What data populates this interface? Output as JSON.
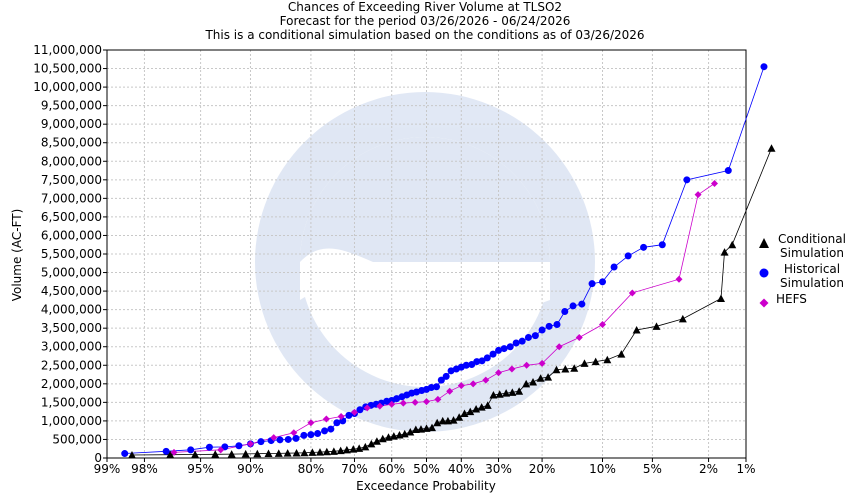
{
  "header": {
    "title": "Chances of Exceeding River Volume at TLSO2",
    "subtitle1": "Forecast for the period 03/26/2026 - 06/24/2026",
    "subtitle2": "This is a conditional simulation based on the conditions as of 03/26/2026"
  },
  "legend": {
    "conditional_line1": "Conditional",
    "conditional_line2": "Simulation",
    "historical_line1": "Historical",
    "historical_line2": "Simulation",
    "hefs": "HEFS"
  },
  "colors": {
    "conditional": "#000000",
    "historical": "#0000ff",
    "hefs": "#cc00cc",
    "grid": "#c8c8c8"
  },
  "chart_data": {
    "type": "scatter",
    "xlabel": "Exceedance Probability",
    "ylabel": "Volume (AC-FT)",
    "x_scale": "normal-probability",
    "x_ticks": [
      99,
      98,
      95,
      90,
      80,
      70,
      60,
      50,
      40,
      30,
      20,
      10,
      5,
      2,
      1
    ],
    "x_tick_labels": [
      "99%",
      "98%",
      "95%",
      "90%",
      "80%",
      "70%",
      "60%",
      "50%",
      "40%",
      "30%",
      "20%",
      "10%",
      "5%",
      "2%",
      "1%"
    ],
    "ylim": [
      0,
      11000000
    ],
    "y_tick_labels": [
      "0",
      "500,000",
      "1,000,000",
      "1,500,000",
      "2,000,000",
      "2,500,000",
      "3,000,000",
      "3,500,000",
      "4,000,000",
      "4,500,000",
      "5,000,000",
      "5,500,000",
      "6,000,000",
      "6,500,000",
      "7,000,000",
      "7,500,000",
      "8,000,000",
      "8,500,000",
      "9,000,000",
      "9,500,000",
      "10,000,000",
      "10,500,000",
      "11,000,000"
    ],
    "grid": true,
    "legend_position": "right",
    "series": [
      {
        "name": "Conditional Simulation",
        "marker": "triangle",
        "points": [
          [
            98.4,
            80000
          ],
          [
            96.9,
            90000
          ],
          [
            95.4,
            95000
          ],
          [
            93.8,
            100000
          ],
          [
            92.2,
            105000
          ],
          [
            90.6,
            110000
          ],
          [
            89.1,
            115000
          ],
          [
            87.5,
            120000
          ],
          [
            85.9,
            125000
          ],
          [
            84.4,
            130000
          ],
          [
            82.8,
            135000
          ],
          [
            81.3,
            140000
          ],
          [
            79.7,
            150000
          ],
          [
            78.1,
            160000
          ],
          [
            76.6,
            170000
          ],
          [
            75.0,
            180000
          ],
          [
            73.4,
            200000
          ],
          [
            71.9,
            220000
          ],
          [
            70.3,
            240000
          ],
          [
            68.8,
            260000
          ],
          [
            67.2,
            300000
          ],
          [
            65.6,
            380000
          ],
          [
            64.1,
            450000
          ],
          [
            62.5,
            520000
          ],
          [
            60.9,
            560000
          ],
          [
            59.4,
            590000
          ],
          [
            57.8,
            620000
          ],
          [
            56.3,
            650000
          ],
          [
            54.7,
            700000
          ],
          [
            53.1,
            770000
          ],
          [
            51.6,
            780000
          ],
          [
            50.0,
            800000
          ],
          [
            48.4,
            820000
          ],
          [
            46.9,
            950000
          ],
          [
            45.3,
            1000000
          ],
          [
            43.8,
            1000000
          ],
          [
            42.2,
            1020000
          ],
          [
            40.6,
            1100000
          ],
          [
            39.1,
            1200000
          ],
          [
            37.5,
            1250000
          ],
          [
            35.9,
            1320000
          ],
          [
            34.4,
            1370000
          ],
          [
            32.8,
            1420000
          ],
          [
            31.3,
            1700000
          ],
          [
            29.7,
            1720000
          ],
          [
            28.1,
            1750000
          ],
          [
            26.6,
            1770000
          ],
          [
            25.0,
            1800000
          ],
          [
            23.4,
            2000000
          ],
          [
            21.9,
            2050000
          ],
          [
            20.3,
            2150000
          ],
          [
            18.8,
            2180000
          ],
          [
            17.2,
            2380000
          ],
          [
            15.6,
            2400000
          ],
          [
            14.1,
            2420000
          ],
          [
            12.5,
            2550000
          ],
          [
            10.9,
            2600000
          ],
          [
            9.4,
            2650000
          ],
          [
            7.8,
            2800000
          ],
          [
            6.3,
            3450000
          ],
          [
            4.7,
            3550000
          ],
          [
            3.1,
            3750000
          ],
          [
            1.6,
            4300000
          ],
          [
            1.5,
            5550000
          ],
          [
            1.3,
            5750000
          ],
          [
            0.6,
            8350000
          ]
        ]
      },
      {
        "name": "Historical Simulation",
        "marker": "circle",
        "points": [
          [
            98.6,
            120000
          ],
          [
            97.1,
            180000
          ],
          [
            95.7,
            220000
          ],
          [
            94.3,
            290000
          ],
          [
            92.9,
            300000
          ],
          [
            91.4,
            330000
          ],
          [
            90.0,
            380000
          ],
          [
            88.6,
            440000
          ],
          [
            87.1,
            470000
          ],
          [
            85.7,
            490000
          ],
          [
            84.3,
            500000
          ],
          [
            82.9,
            530000
          ],
          [
            81.4,
            610000
          ],
          [
            80.0,
            630000
          ],
          [
            78.6,
            660000
          ],
          [
            77.1,
            730000
          ],
          [
            75.7,
            780000
          ],
          [
            74.3,
            950000
          ],
          [
            72.9,
            1000000
          ],
          [
            71.4,
            1150000
          ],
          [
            70.0,
            1200000
          ],
          [
            68.6,
            1300000
          ],
          [
            67.1,
            1380000
          ],
          [
            65.7,
            1420000
          ],
          [
            64.3,
            1450000
          ],
          [
            62.9,
            1480000
          ],
          [
            61.4,
            1530000
          ],
          [
            60.0,
            1550000
          ],
          [
            58.6,
            1600000
          ],
          [
            57.1,
            1650000
          ],
          [
            55.7,
            1700000
          ],
          [
            54.3,
            1750000
          ],
          [
            52.9,
            1780000
          ],
          [
            51.4,
            1820000
          ],
          [
            50.0,
            1850000
          ],
          [
            48.6,
            1900000
          ],
          [
            47.1,
            1920000
          ],
          [
            45.7,
            2100000
          ],
          [
            44.3,
            2200000
          ],
          [
            42.9,
            2350000
          ],
          [
            41.4,
            2400000
          ],
          [
            40.0,
            2450000
          ],
          [
            38.6,
            2500000
          ],
          [
            37.1,
            2520000
          ],
          [
            35.7,
            2600000
          ],
          [
            34.3,
            2620000
          ],
          [
            32.9,
            2700000
          ],
          [
            31.4,
            2800000
          ],
          [
            30.0,
            2900000
          ],
          [
            28.6,
            2950000
          ],
          [
            27.1,
            3000000
          ],
          [
            25.7,
            3100000
          ],
          [
            24.3,
            3150000
          ],
          [
            22.9,
            3250000
          ],
          [
            21.4,
            3300000
          ],
          [
            20.0,
            3450000
          ],
          [
            18.6,
            3550000
          ],
          [
            17.1,
            3600000
          ],
          [
            15.7,
            3950000
          ],
          [
            14.3,
            4100000
          ],
          [
            12.9,
            4150000
          ],
          [
            11.4,
            4700000
          ],
          [
            10.0,
            4750000
          ],
          [
            8.6,
            5150000
          ],
          [
            7.1,
            5450000
          ],
          [
            5.7,
            5680000
          ],
          [
            4.3,
            5750000
          ],
          [
            2.9,
            7500000
          ],
          [
            1.4,
            7750000
          ],
          [
            0.7,
            10550000
          ]
        ]
      },
      {
        "name": "HEFS",
        "marker": "diamond",
        "points": [
          [
            96.7,
            150000
          ],
          [
            93.3,
            220000
          ],
          [
            90.0,
            380000
          ],
          [
            86.7,
            550000
          ],
          [
            83.3,
            680000
          ],
          [
            80.0,
            950000
          ],
          [
            76.7,
            1050000
          ],
          [
            73.3,
            1120000
          ],
          [
            70.0,
            1230000
          ],
          [
            66.7,
            1350000
          ],
          [
            63.3,
            1400000
          ],
          [
            60.0,
            1450000
          ],
          [
            56.7,
            1480000
          ],
          [
            53.3,
            1500000
          ],
          [
            50.0,
            1520000
          ],
          [
            46.7,
            1580000
          ],
          [
            43.3,
            1800000
          ],
          [
            40.0,
            1950000
          ],
          [
            36.7,
            2000000
          ],
          [
            33.3,
            2100000
          ],
          [
            30.0,
            2300000
          ],
          [
            26.7,
            2400000
          ],
          [
            23.3,
            2500000
          ],
          [
            20.0,
            2550000
          ],
          [
            16.7,
            3000000
          ],
          [
            13.3,
            3250000
          ],
          [
            10.0,
            3600000
          ],
          [
            6.7,
            4450000
          ],
          [
            3.3,
            4820000
          ],
          [
            2.4,
            7100000
          ],
          [
            1.8,
            7400000
          ]
        ]
      }
    ]
  }
}
